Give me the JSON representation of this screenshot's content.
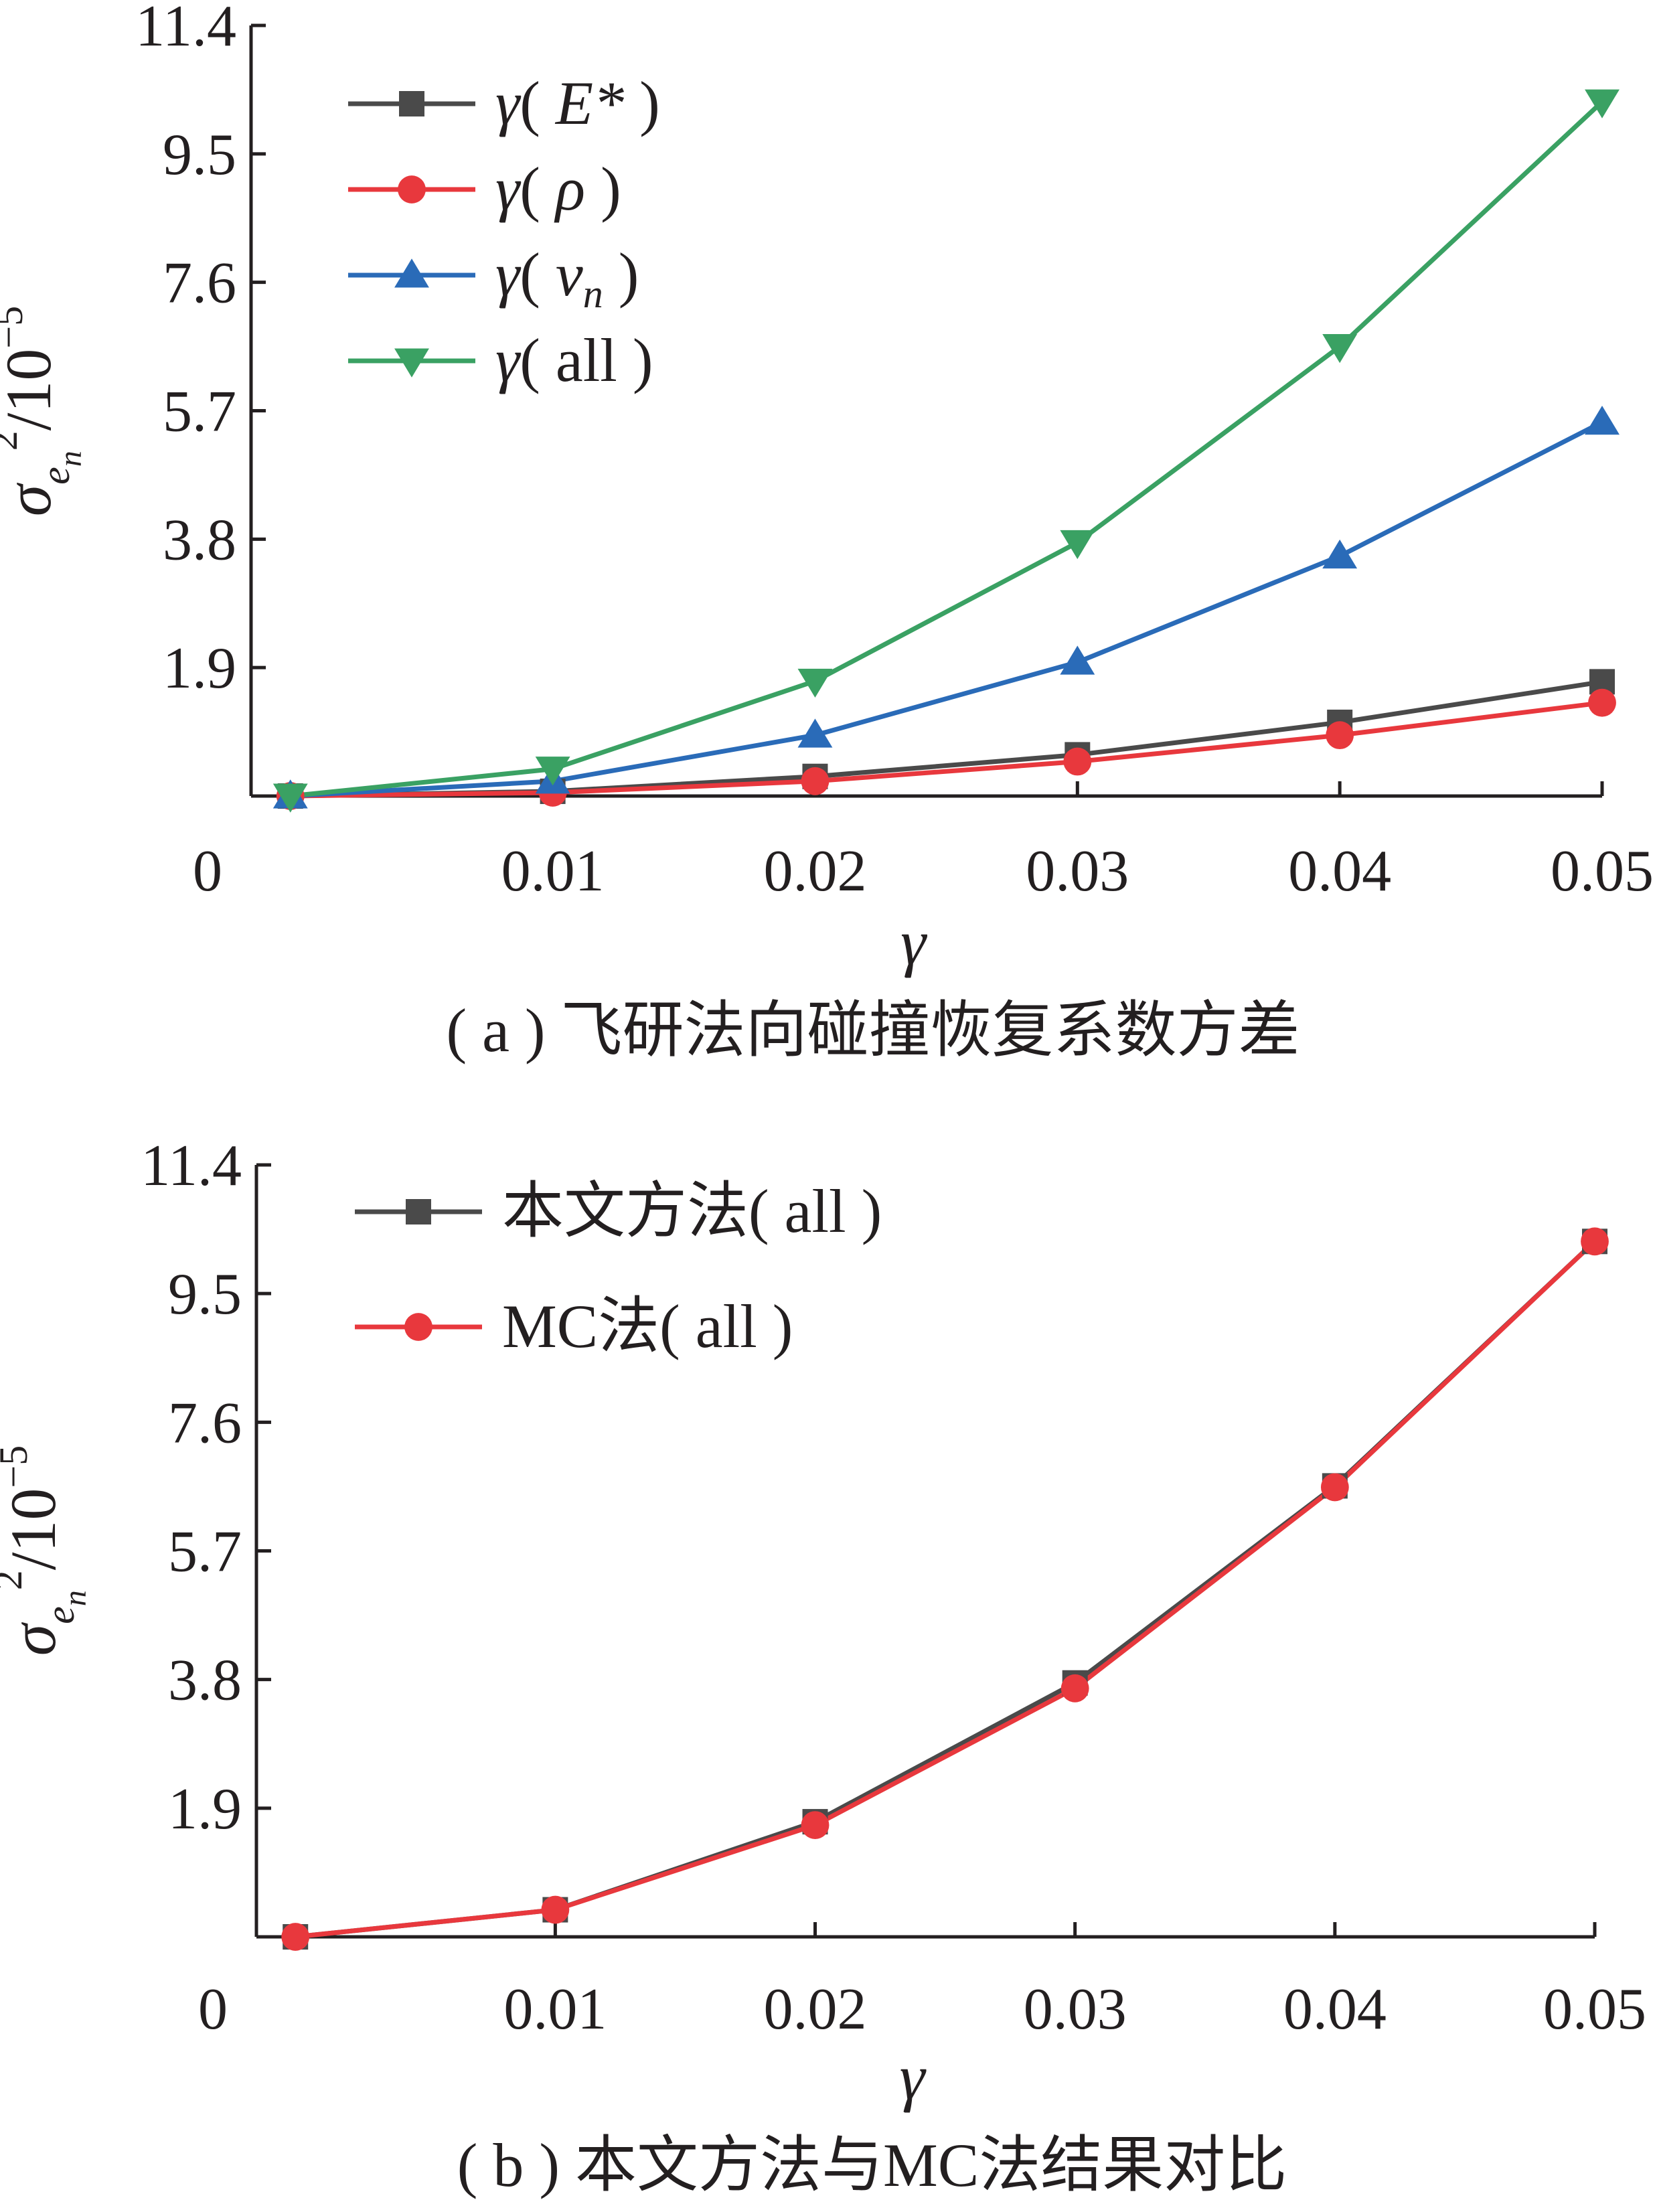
{
  "chart_data": [
    {
      "type": "line",
      "panel": "a",
      "caption": "( a ) 飞研法向碰撞恢复系数方差",
      "xlabel": "γ",
      "ylabel": "σ_{e_n}^2/10^-5",
      "x": [
        0,
        0.01,
        0.02,
        0.03,
        0.04,
        0.05
      ],
      "xticks": [
        "0",
        "0.01",
        "0.02",
        "0.03",
        "0.04",
        "0.05"
      ],
      "yticks": [
        "1.9",
        "3.8",
        "5.7",
        "7.6",
        "9.5",
        "11.4"
      ],
      "xlim": [
        -0.0015,
        0.05
      ],
      "ylim": [
        0,
        11.4
      ],
      "legend_position": "top-left",
      "series": [
        {
          "name": "γ( E* )",
          "marker": "square",
          "color": "#4a4a4a",
          "values": [
            0,
            0.07,
            0.29,
            0.61,
            1.09,
            1.69
          ]
        },
        {
          "name": "γ( ρ )",
          "marker": "circle",
          "color": "#e8383d",
          "values": [
            0,
            0.05,
            0.22,
            0.51,
            0.9,
            1.38
          ]
        },
        {
          "name": "γ( vn )",
          "marker": "triangle-up",
          "color": "#2a6bb8",
          "values": [
            0,
            0.22,
            0.9,
            1.98,
            3.55,
            5.53
          ]
        },
        {
          "name": "γ( all )",
          "marker": "triangle-down",
          "color": "#3aa163",
          "values": [
            0,
            0.4,
            1.7,
            3.75,
            6.65,
            10.27
          ]
        }
      ]
    },
    {
      "type": "line",
      "panel": "b",
      "caption": "( b ) 本文方法与MC法结果对比",
      "xlabel": "γ",
      "ylabel": "σ_{e_n}^2/10^-5",
      "x": [
        0,
        0.01,
        0.02,
        0.03,
        0.04,
        0.05
      ],
      "xticks": [
        "0",
        "0.01",
        "0.02",
        "0.03",
        "0.04",
        "0.05"
      ],
      "yticks": [
        "1.9",
        "3.8",
        "5.7",
        "7.6",
        "9.5",
        "11.4"
      ],
      "xlim": [
        -0.0015,
        0.05
      ],
      "ylim": [
        0,
        11.4
      ],
      "legend_position": "top-left",
      "series": [
        {
          "name": "本文方法( all )",
          "marker": "square",
          "color": "#4a4a4a",
          "values": [
            0,
            0.4,
            1.7,
            3.75,
            6.66,
            10.27
          ]
        },
        {
          "name": "MC法( all )",
          "marker": "circle",
          "color": "#e8383d",
          "values": [
            0,
            0.4,
            1.65,
            3.67,
            6.64,
            10.27
          ]
        }
      ]
    }
  ]
}
